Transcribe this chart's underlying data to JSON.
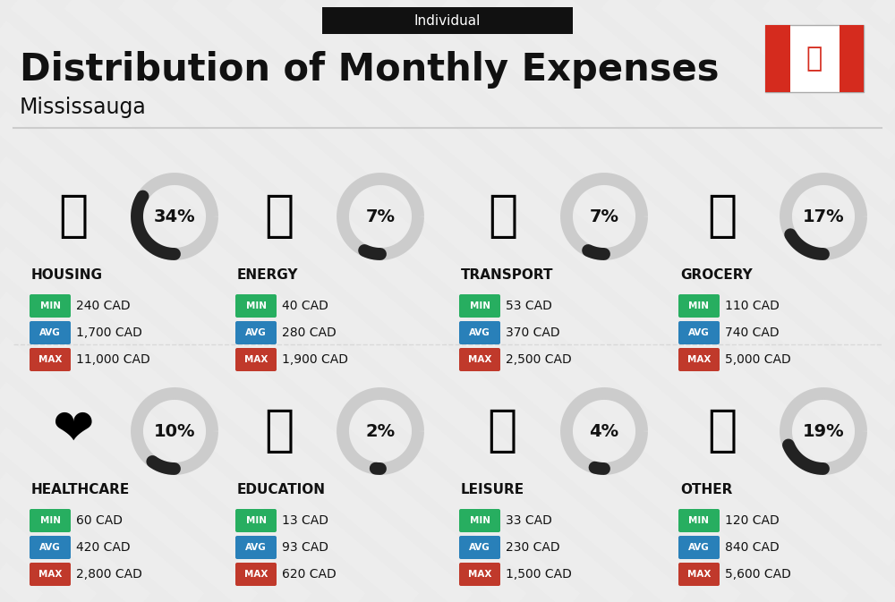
{
  "title": "Distribution of Monthly Expenses",
  "subtitle": "Individual",
  "location": "Mississauga",
  "bg_color": "#ebebeb",
  "categories": [
    {
      "name": "HOUSING",
      "pct": 34,
      "min_val": "240 CAD",
      "avg_val": "1,700 CAD",
      "max_val": "11,000 CAD",
      "row": 0,
      "col": 0,
      "icon": "🏗"
    },
    {
      "name": "ENERGY",
      "pct": 7,
      "min_val": "40 CAD",
      "avg_val": "280 CAD",
      "max_val": "1,900 CAD",
      "row": 0,
      "col": 1,
      "icon": "⚡"
    },
    {
      "name": "TRANSPORT",
      "pct": 7,
      "min_val": "53 CAD",
      "avg_val": "370 CAD",
      "max_val": "2,500 CAD",
      "row": 0,
      "col": 2,
      "icon": "🚌"
    },
    {
      "name": "GROCERY",
      "pct": 17,
      "min_val": "110 CAD",
      "avg_val": "740 CAD",
      "max_val": "5,000 CAD",
      "row": 0,
      "col": 3,
      "icon": "🛒"
    },
    {
      "name": "HEALTHCARE",
      "pct": 10,
      "min_val": "60 CAD",
      "avg_val": "420 CAD",
      "max_val": "2,800 CAD",
      "row": 1,
      "col": 0,
      "icon": "❤"
    },
    {
      "name": "EDUCATION",
      "pct": 2,
      "min_val": "13 CAD",
      "avg_val": "93 CAD",
      "max_val": "620 CAD",
      "row": 1,
      "col": 1,
      "icon": "🎓"
    },
    {
      "name": "LEISURE",
      "pct": 4,
      "min_val": "33 CAD",
      "avg_val": "230 CAD",
      "max_val": "1,500 CAD",
      "row": 1,
      "col": 2,
      "icon": "🛍"
    },
    {
      "name": "OTHER",
      "pct": 19,
      "min_val": "120 CAD",
      "avg_val": "840 CAD",
      "max_val": "5,600 CAD",
      "row": 1,
      "col": 3,
      "icon": "💜"
    }
  ],
  "min_color": "#27ae60",
  "avg_color": "#2980b9",
  "max_color": "#c0392b",
  "arc_dark": "#222222",
  "arc_light": "#cccccc",
  "text_dark": "#111111",
  "text_med": "#444444"
}
